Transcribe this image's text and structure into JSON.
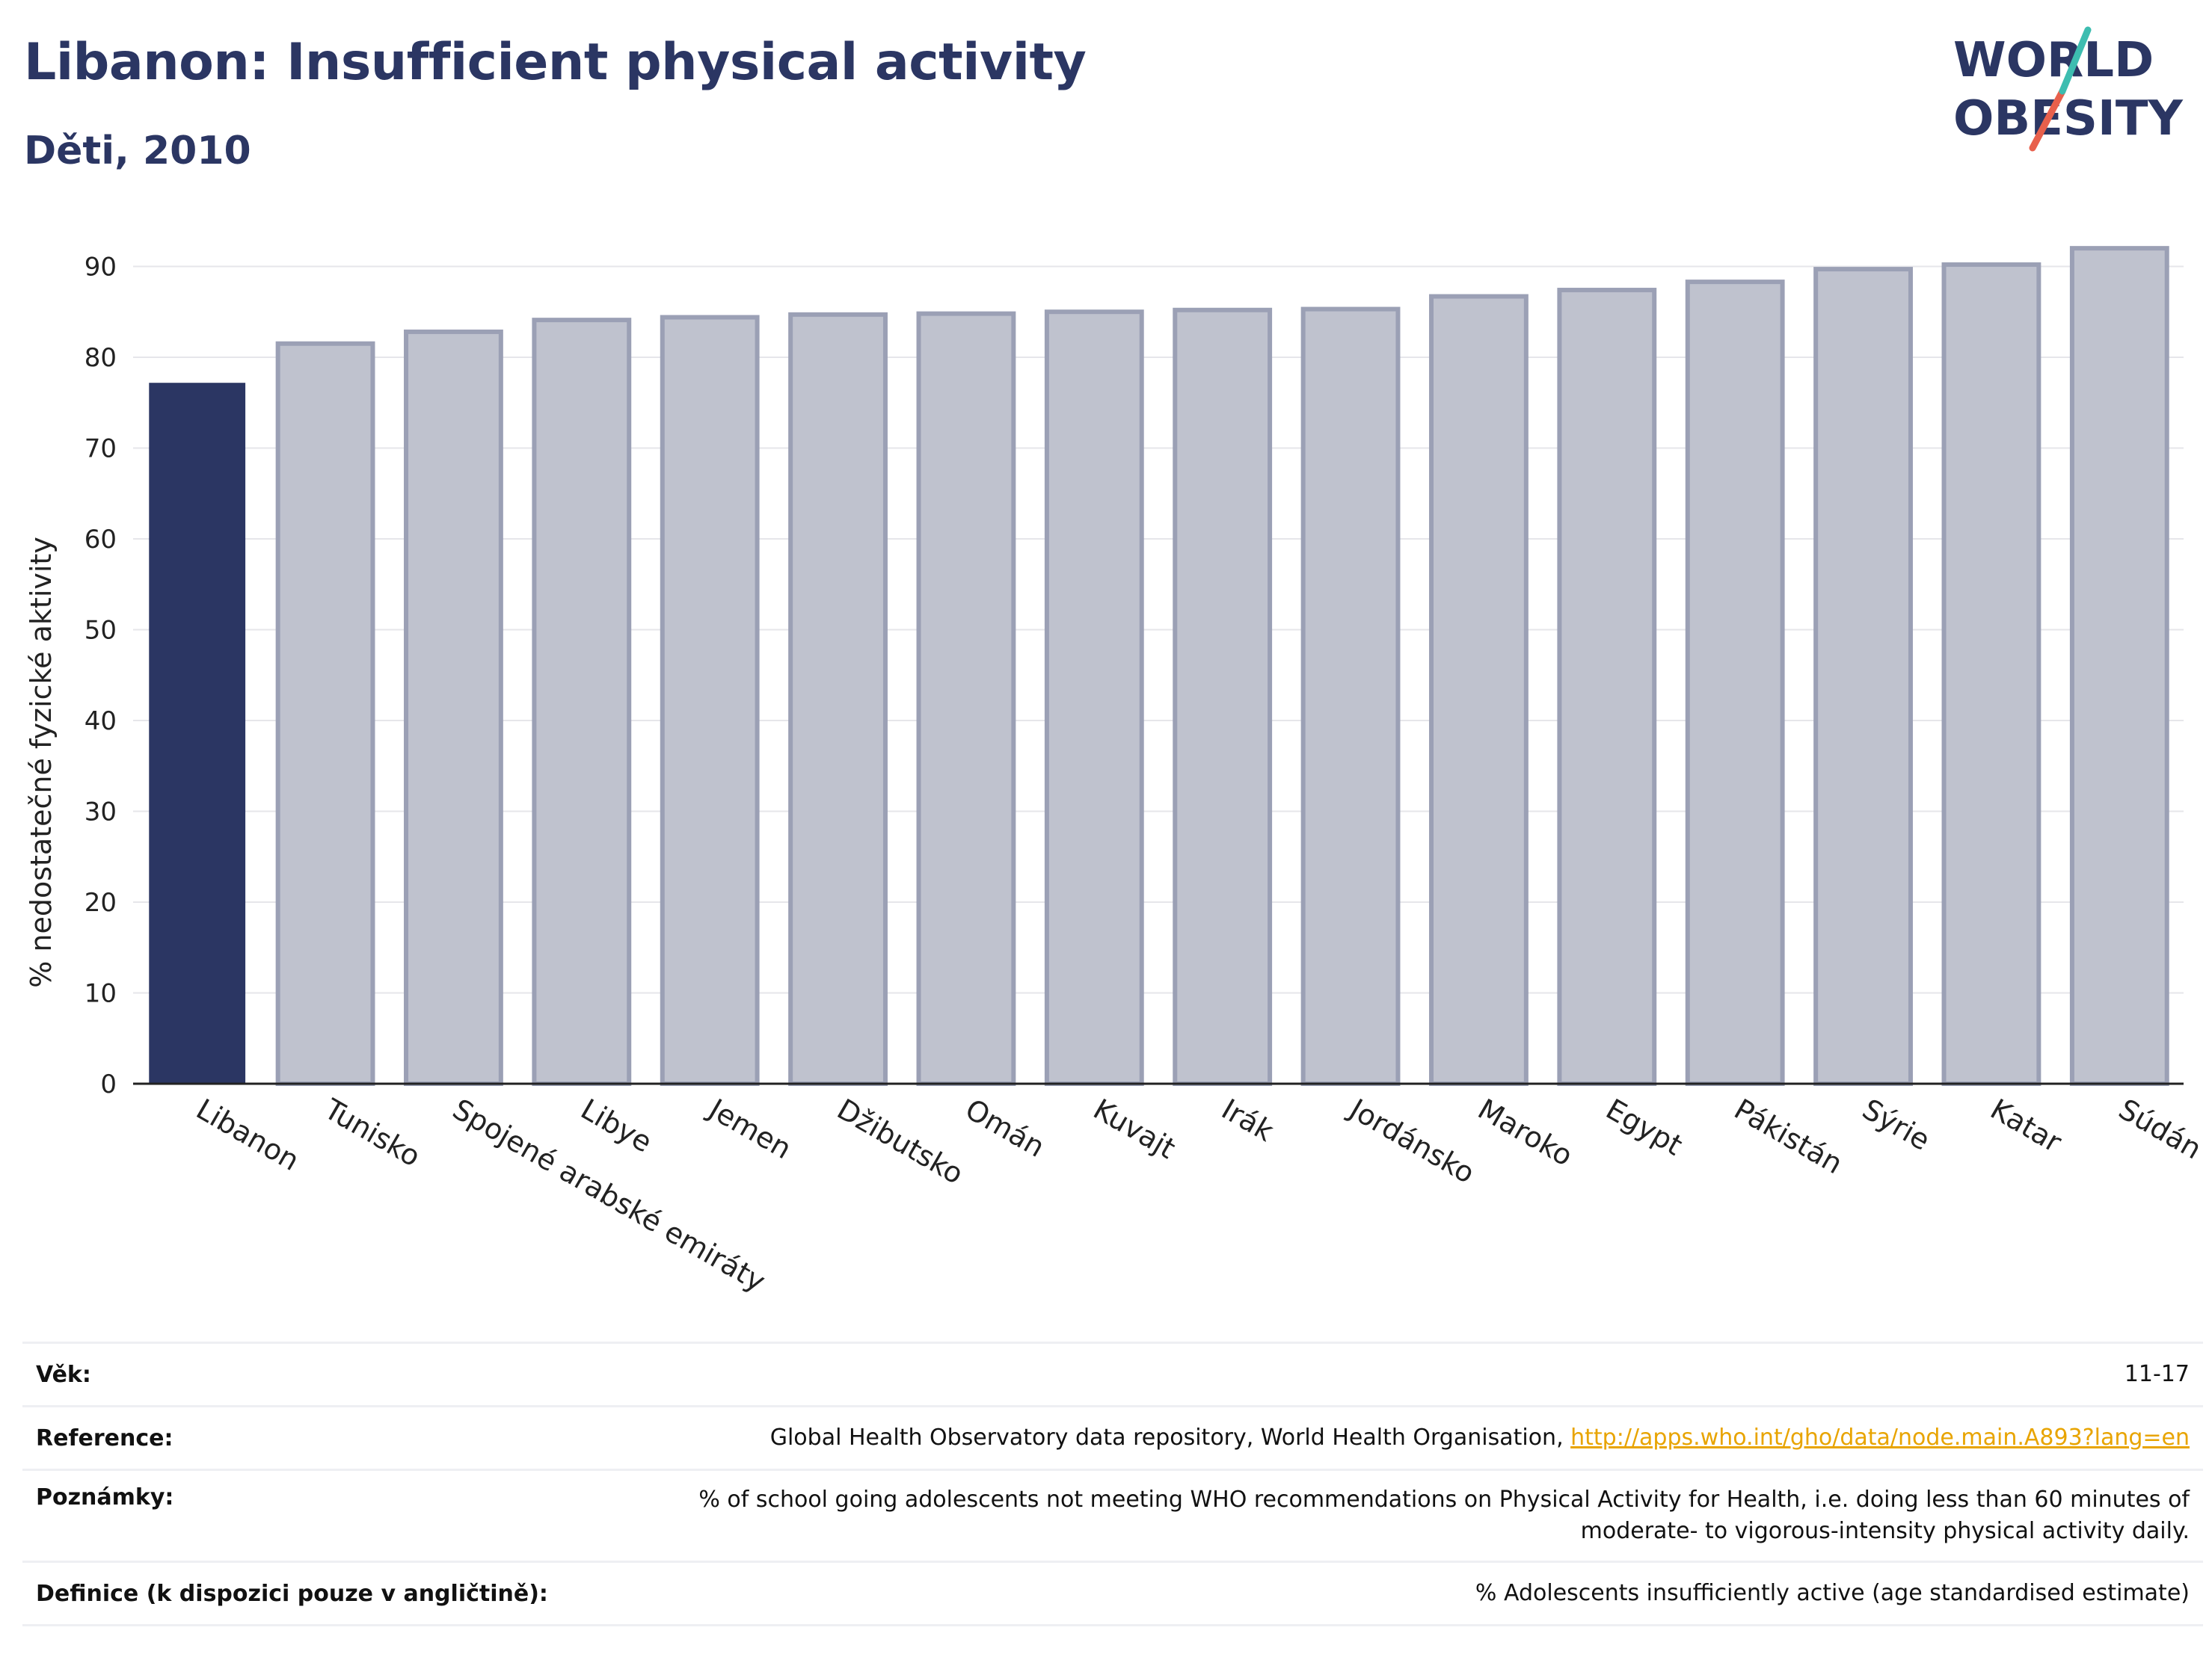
{
  "header": {
    "title": "Libanon: Insufficient physical activity",
    "subtitle": "Děti, 2010"
  },
  "logo": {
    "line1": "WORLD",
    "line2": "OBESITY",
    "text_color": "#2b3663",
    "accent_teal": "#3dbdb0",
    "accent_red": "#e8604c"
  },
  "colors": {
    "highlight_bar": "#2b3663",
    "other_bar_fill": "#bfc2ce",
    "other_bar_stroke": "#9ba0b5",
    "grid": "#e6e6ea",
    "axis": "#222222"
  },
  "chart_data": {
    "type": "bar",
    "title": "Libanon: Insufficient physical activity",
    "subtitle": "Děti, 2010",
    "ylabel": "% nedostatečné fyzické aktivity",
    "xlabel": "",
    "ylim": [
      0,
      93
    ],
    "yticks": [
      0,
      10,
      20,
      30,
      40,
      50,
      60,
      70,
      80,
      90
    ],
    "grid": true,
    "highlight": "Libanon",
    "categories": [
      "Libanon",
      "Tunisko",
      "Spojené arabské emiráty",
      "Libye",
      "Jemen",
      "Džibutsko",
      "Omán",
      "Kuvajt",
      "Irák",
      "Jordánsko",
      "Maroko",
      "Egypt",
      "Pákistán",
      "Sýrie",
      "Katar",
      "Súdán"
    ],
    "values": [
      77.1,
      81.5,
      82.8,
      84.1,
      84.4,
      84.7,
      84.8,
      85.0,
      85.2,
      85.3,
      86.7,
      87.4,
      88.3,
      89.7,
      90.2,
      92.0
    ]
  },
  "meta": {
    "age_label": "Věk:",
    "age_value": "11-17",
    "reference_label": "Reference:",
    "reference_text": "Global Health Observatory data repository, World Health Organisation, ",
    "reference_link": "http://apps.who.int/gho/data/node.main.A893?lang=en",
    "notes_label": "Poznámky:",
    "notes_line1": "% of school going adolescents not meeting WHO recommendations on Physical Activity for Health, i.e. doing less than 60 minutes of",
    "notes_line2": "moderate- to vigorous-intensity physical activity daily.",
    "definition_label": "Definice (k dispozici pouze v angličtině):",
    "definition_value": "% Adolescents insufficiently active (age standardised estimate)"
  }
}
